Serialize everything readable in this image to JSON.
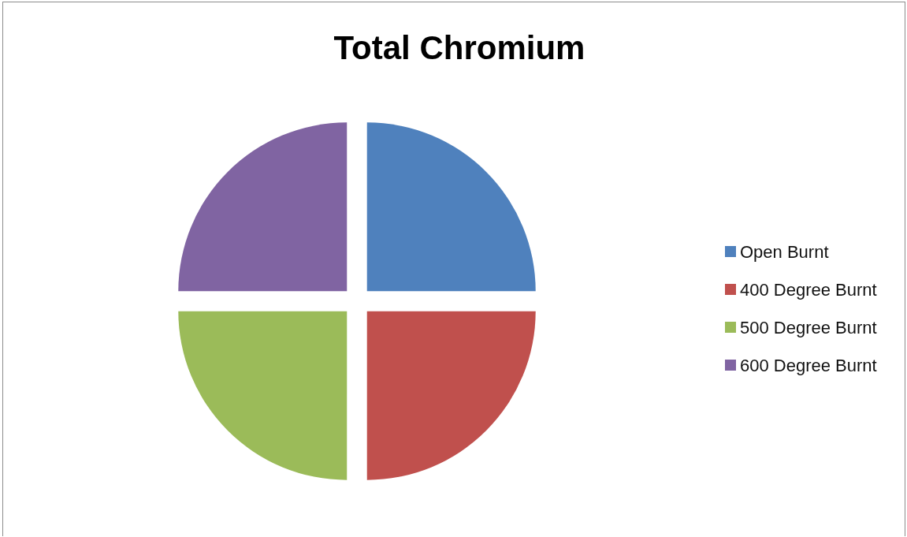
{
  "chart_data": {
    "type": "pie",
    "title": "Total Chromium",
    "categories": [
      "Open Burnt",
      "400 Degree Burnt",
      "500 Degree Burnt",
      "600 Degree Burnt"
    ],
    "values": [
      25,
      25,
      25,
      25
    ],
    "colors": [
      "#4f81bd",
      "#c0504d",
      "#9bbb59",
      "#8064a2"
    ],
    "legend": "right"
  }
}
